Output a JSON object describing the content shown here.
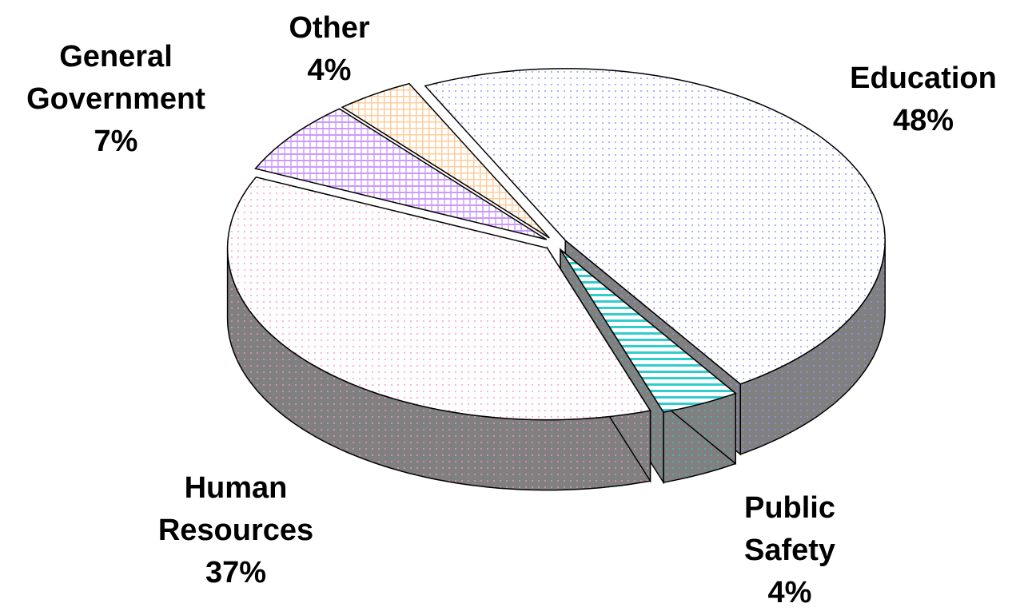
{
  "chart_data": {
    "type": "pie",
    "categories": [
      "Education",
      "Public Safety",
      "Human Resources",
      "General Government",
      "Other"
    ],
    "values": [
      48,
      4,
      37,
      7,
      4
    ],
    "value_labels": [
      "48%",
      "4%",
      "37%",
      "7%",
      "4%"
    ],
    "colors": [
      "#9999ff",
      "#33cccc",
      "#ff99cc",
      "#cc99ff",
      "#ffcc99"
    ]
  }
}
